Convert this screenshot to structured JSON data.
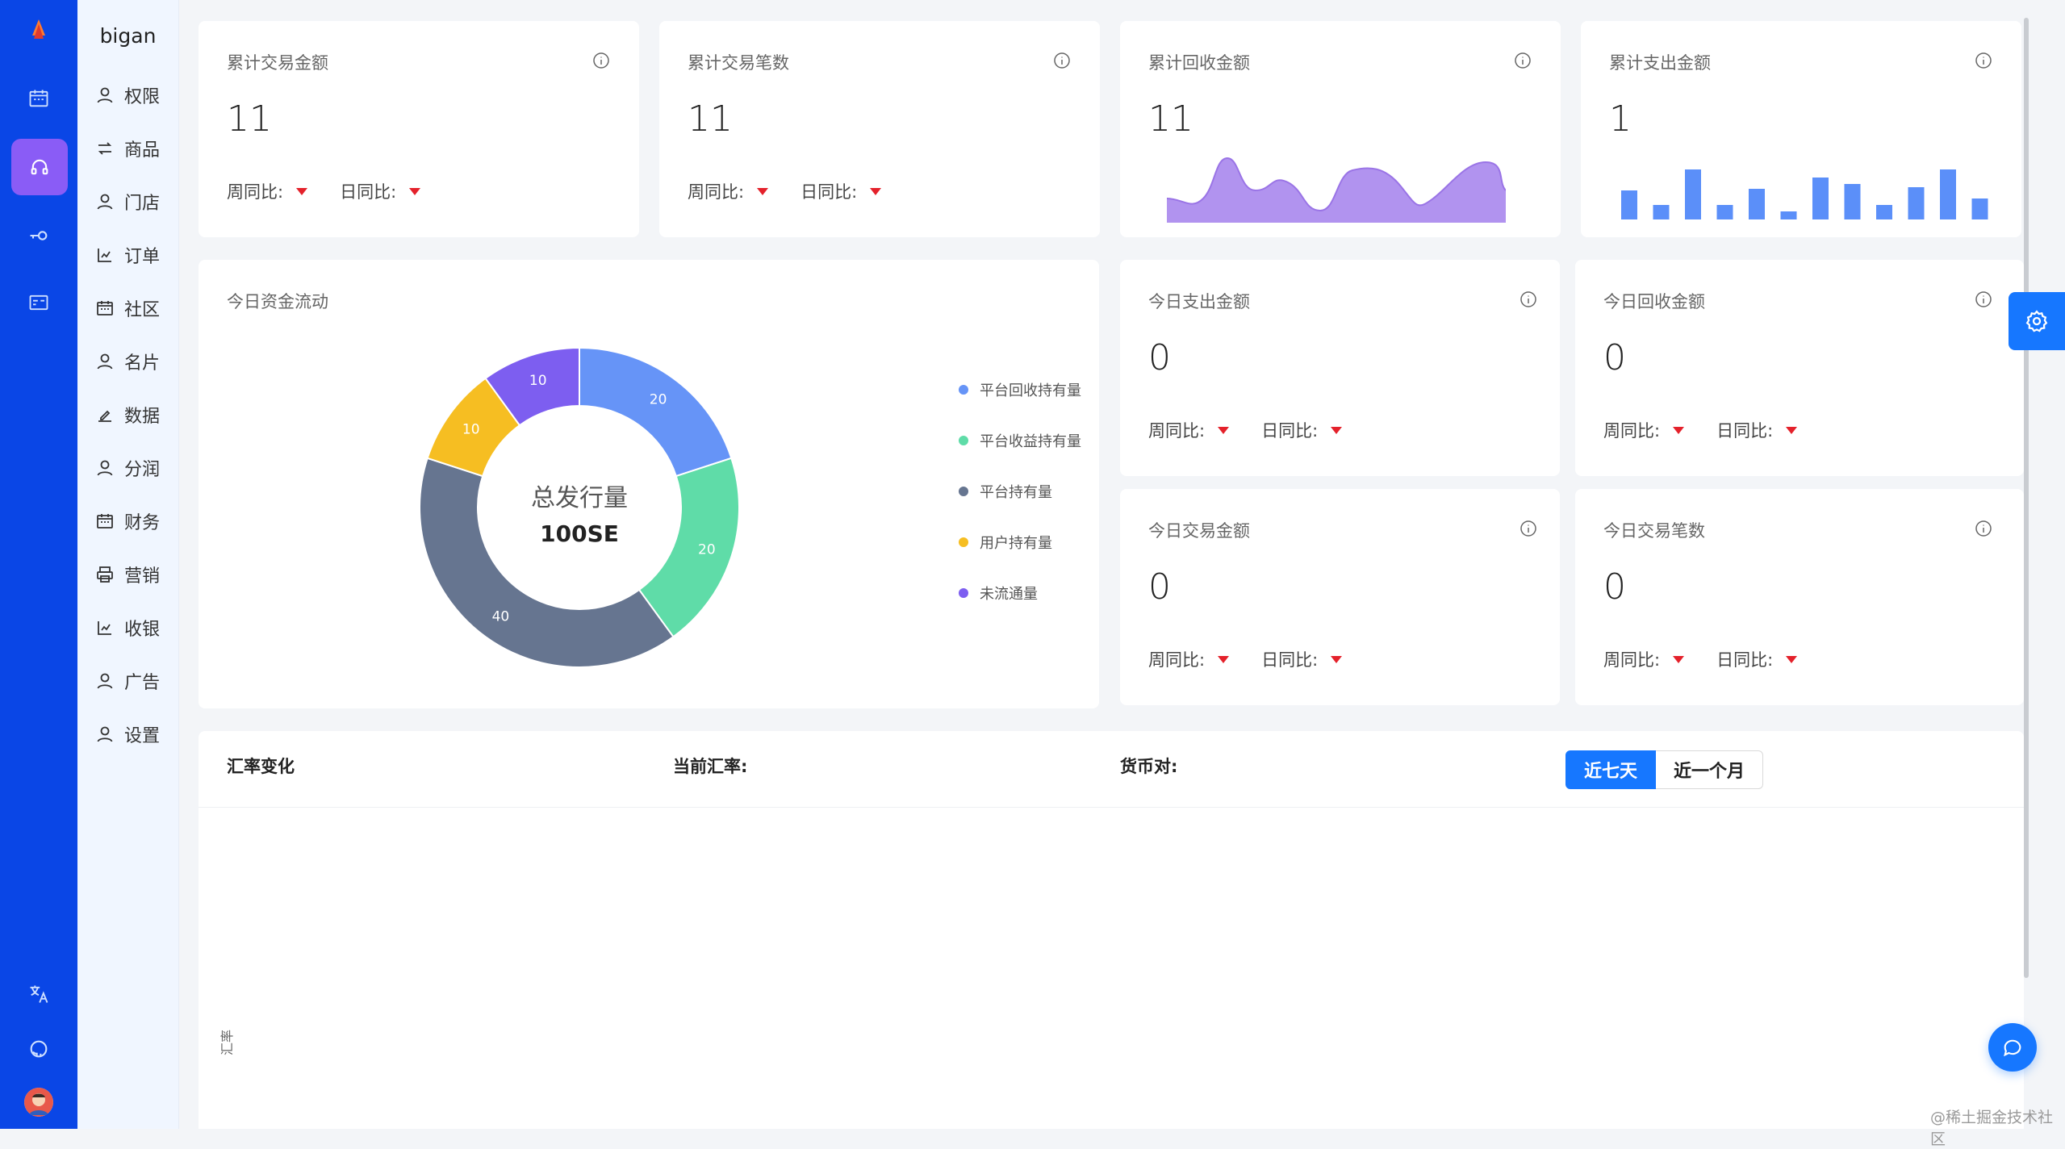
{
  "brand": "bigan",
  "colors": {
    "rail": "#0a46e6",
    "accent": "#1677ff",
    "active_rail": "#8a5cf6",
    "down_arrow": "#e4212b"
  },
  "rail_icons": [
    "calendar-icon",
    "headset-icon",
    "key-icon",
    "id-card-icon"
  ],
  "rail_bottom_icons": [
    "translate-icon",
    "github-icon",
    "avatar"
  ],
  "menu": [
    {
      "label": "权限",
      "icon": "user-icon"
    },
    {
      "label": "商品",
      "icon": "switch-icon"
    },
    {
      "label": "门店",
      "icon": "user-icon"
    },
    {
      "label": "订单",
      "icon": "chart-icon"
    },
    {
      "label": "社区",
      "icon": "calendar-icon"
    },
    {
      "label": "名片",
      "icon": "user-icon"
    },
    {
      "label": "数据",
      "icon": "edit-icon"
    },
    {
      "label": "分润",
      "icon": "user-icon"
    },
    {
      "label": "财务",
      "icon": "calendar-icon"
    },
    {
      "label": "营销",
      "icon": "printer-icon"
    },
    {
      "label": "收银",
      "icon": "chart-icon"
    },
    {
      "label": "广告",
      "icon": "user-icon"
    },
    {
      "label": "设置",
      "icon": "user-icon"
    }
  ],
  "compare": {
    "week": "周同比:",
    "day": "日同比:"
  },
  "stats_top": [
    {
      "title": "累计交易金额",
      "value": "11"
    },
    {
      "title": "累计交易笔数",
      "value": "11"
    },
    {
      "title": "累计回收金额",
      "value": "11"
    },
    {
      "title": "累计支出金额",
      "value": "1"
    }
  ],
  "stats_today": [
    {
      "title": "今日支出金额",
      "value": "0"
    },
    {
      "title": "今日回收金额",
      "value": "0"
    },
    {
      "title": "今日交易金额",
      "value": "0"
    },
    {
      "title": "今日交易笔数",
      "value": "0"
    }
  ],
  "flow_title": "今日资金流动",
  "chart_data": {
    "type": "pie",
    "center_title": "总发行量",
    "center_value": "100SE",
    "slices": [
      {
        "name": "平台回收持有量",
        "value": 20,
        "color": "#6694f7"
      },
      {
        "name": "平台收益持有量",
        "value": 20,
        "color": "#5fdca8"
      },
      {
        "name": "平台持有量",
        "value": 40,
        "color": "#667590"
      },
      {
        "name": "用户持有量",
        "value": 10,
        "color": "#f6be22"
      },
      {
        "name": "未流通量",
        "value": 10,
        "color": "#7d5ef0"
      }
    ]
  },
  "exchange": {
    "title": "汇率变化",
    "current_rate_label": "当前汇率:",
    "pair_label": "货币对:",
    "btn_7d": "近七天",
    "btn_1m": "近一个月",
    "axis_label": "汇率"
  },
  "watermark": "@稀土掘金技术社区"
}
